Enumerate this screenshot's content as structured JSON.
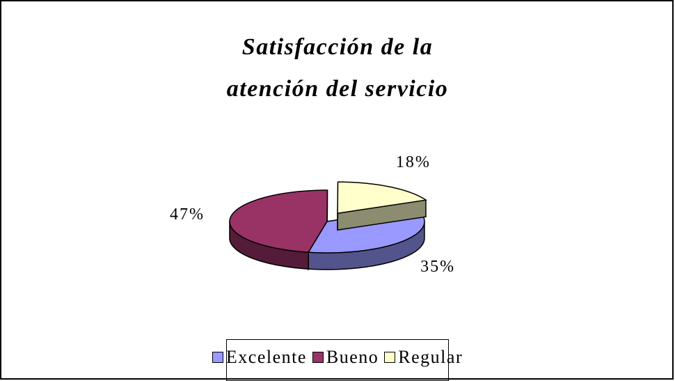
{
  "chart_data": {
    "type": "pie3d",
    "title": "Satisfacción de la atención del servicio",
    "categories": [
      "Excelente",
      "Bueno",
      "Regular"
    ],
    "values": [
      35,
      47,
      18
    ],
    "value_labels": [
      "35%",
      "47%",
      "18%"
    ],
    "colors": [
      "#9999ff",
      "#993366",
      "#ffffcc"
    ],
    "legend": "bottom"
  }
}
